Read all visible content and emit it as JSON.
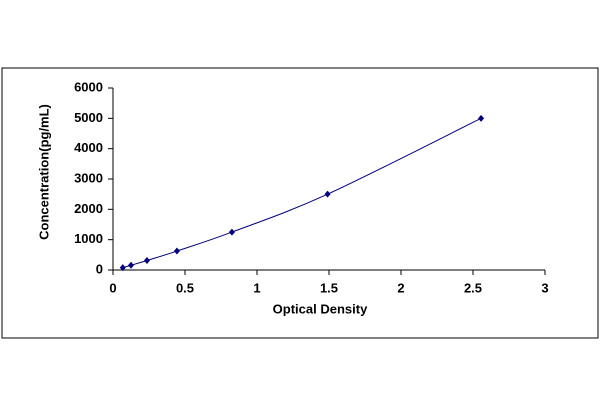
{
  "chart_data": {
    "type": "scatter-line",
    "x_label": "Optical Density",
    "y_label": "Concentration(pg/mL)",
    "series": [
      {
        "color": "#000080",
        "x": [
          0.068,
          0.125,
          0.236,
          0.444,
          0.826,
          1.49,
          2.556
        ],
        "values": [
          78,
          156,
          312,
          625,
          1250,
          2500,
          5000
        ]
      }
    ],
    "xlim": [
      0,
      3
    ],
    "xticks": [
      0,
      0.5,
      1,
      1.5,
      2,
      2.5,
      3
    ],
    "ylim": [
      0,
      6000
    ],
    "yticks": [
      0,
      1000,
      2000,
      3000,
      4000,
      5000,
      6000
    ],
    "grid": false
  }
}
